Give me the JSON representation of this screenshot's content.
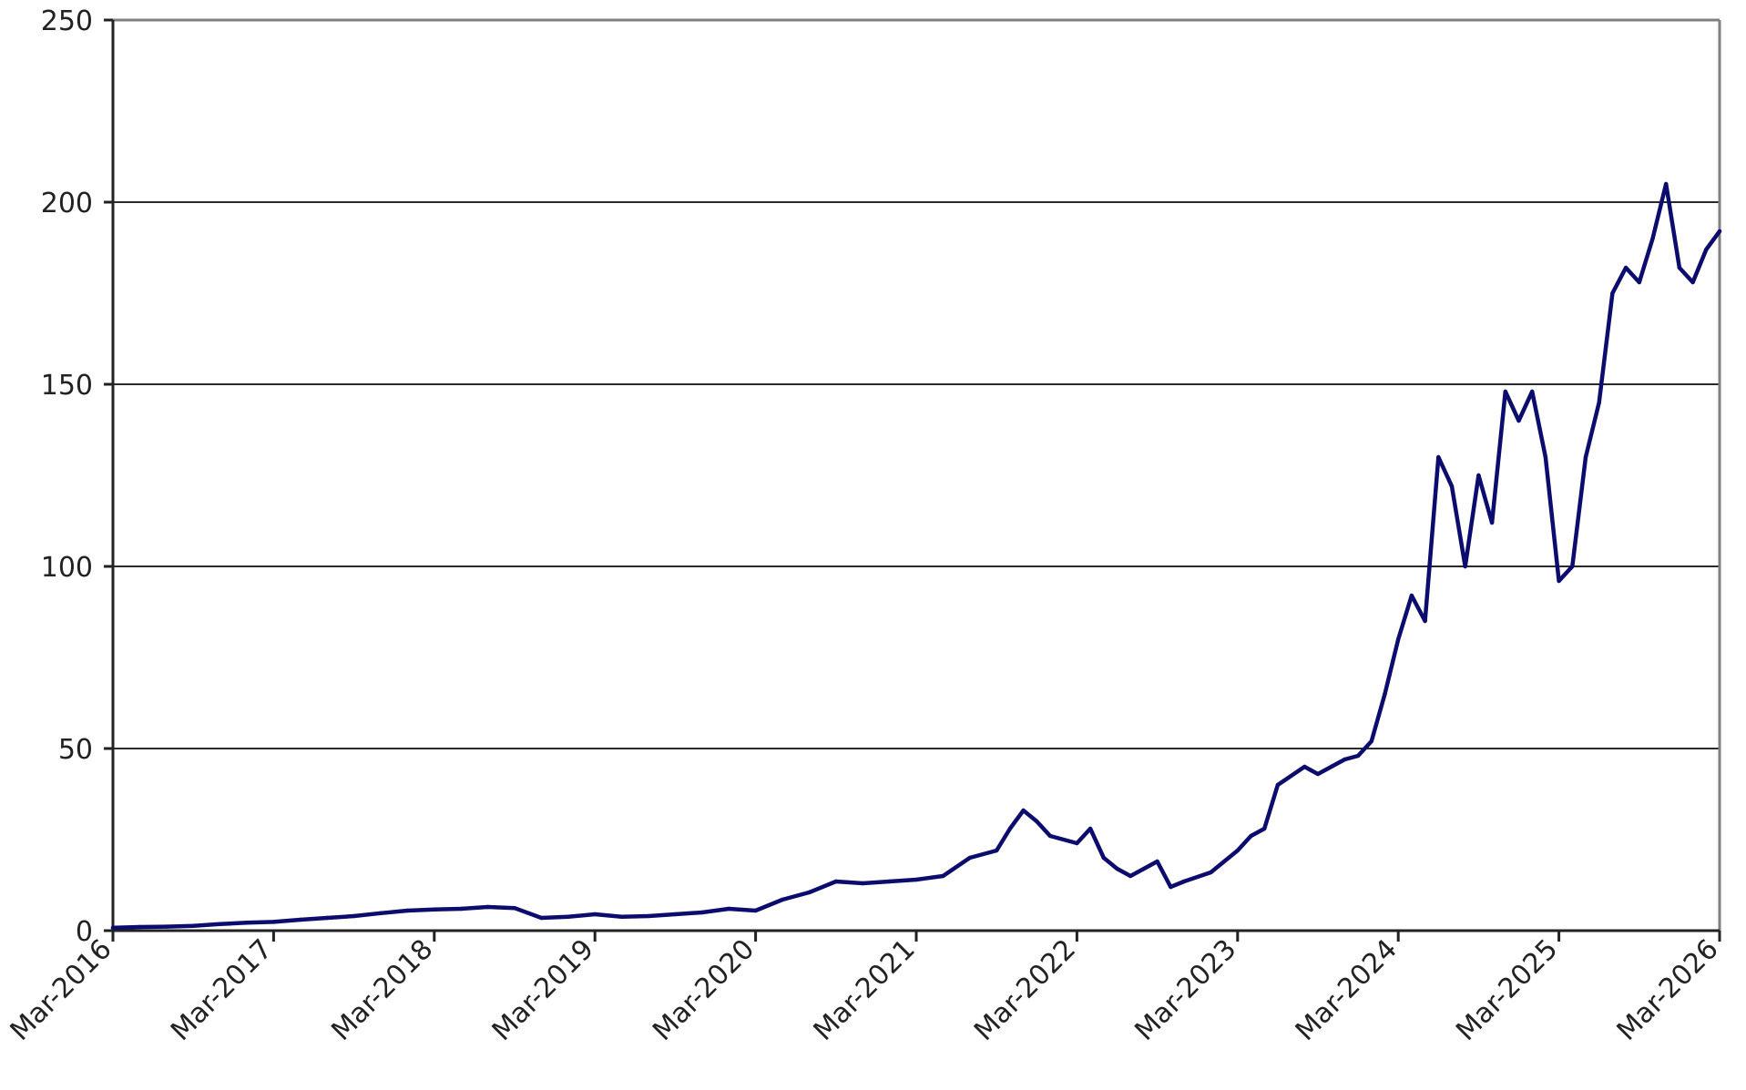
{
  "chart_data": {
    "type": "line",
    "title": "",
    "xlabel": "",
    "ylabel": "",
    "ylim": [
      0,
      250
    ],
    "y_ticks": [
      0,
      50,
      100,
      150,
      200,
      250
    ],
    "x_ticks": [
      "Mar-2016",
      "Mar-2017",
      "Mar-2018",
      "Mar-2019",
      "Mar-2020",
      "Mar-2021",
      "Mar-2022",
      "Mar-2023",
      "Mar-2024",
      "Mar-2025",
      "Mar-2026"
    ],
    "grid": true,
    "legend": "none",
    "line_color": "#0b0c6e",
    "series": [
      {
        "x": [
          "Mar-2016",
          "May-2016",
          "Jul-2016",
          "Sep-2016",
          "Nov-2016",
          "Jan-2017",
          "Mar-2017",
          "May-2017",
          "Jul-2017",
          "Sep-2017",
          "Nov-2017",
          "Jan-2018",
          "Mar-2018",
          "May-2018",
          "Jul-2018",
          "Sep-2018",
          "Nov-2018",
          "Jan-2019",
          "Mar-2019",
          "May-2019",
          "Jul-2019",
          "Sep-2019",
          "Nov-2019",
          "Jan-2020",
          "Mar-2020",
          "May-2020",
          "Jul-2020",
          "Sep-2020",
          "Nov-2020",
          "Jan-2021",
          "Mar-2021",
          "May-2021",
          "Jul-2021",
          "Sep-2021",
          "Oct-2021",
          "Nov-2021",
          "Dec-2021",
          "Jan-2022",
          "Mar-2022",
          "Apr-2022",
          "May-2022",
          "Jun-2022",
          "Jul-2022",
          "Sep-2022",
          "Oct-2022",
          "Nov-2022",
          "Jan-2023",
          "Mar-2023",
          "Apr-2023",
          "May-2023",
          "Jun-2023",
          "Aug-2023",
          "Sep-2023",
          "Nov-2023",
          "Dec-2023",
          "Jan-2024",
          "Feb-2024",
          "Mar-2024",
          "Apr-2024",
          "May-2024",
          "Jun-2024",
          "Jul-2024",
          "Aug-2024",
          "Sep-2024",
          "Oct-2024",
          "Nov-2024",
          "Dec-2024",
          "Jan-2025",
          "Feb-2025",
          "Mar-2025",
          "Apr-2025",
          "May-2025",
          "Jun-2025",
          "Jul-2025",
          "Aug-2025",
          "Sep-2025",
          "Oct-2025",
          "Nov-2025",
          "Dec-2025",
          "Jan-2026",
          "Feb-2026",
          "Mar-2026"
        ],
        "values": [
          0.8,
          1.0,
          1.1,
          1.3,
          1.8,
          2.2,
          2.4,
          3.0,
          3.5,
          4.0,
          4.8,
          5.5,
          5.8,
          6.0,
          6.5,
          6.2,
          3.5,
          3.8,
          4.5,
          3.8,
          4.0,
          4.5,
          5.0,
          6.0,
          5.5,
          8.5,
          10.5,
          13.5,
          13.0,
          13.5,
          14.0,
          15.0,
          20.0,
          22.0,
          28.0,
          33.0,
          30.0,
          26.0,
          24.0,
          28.0,
          20.0,
          17.0,
          15.0,
          19.0,
          12.0,
          13.5,
          16.0,
          22.0,
          26.0,
          28.0,
          40.0,
          45.0,
          43.0,
          47.0,
          48.0,
          52.0,
          65.0,
          80.0,
          92.0,
          85.0,
          130.0,
          122.0,
          100.0,
          125.0,
          112.0,
          148.0,
          140.0,
          148.0,
          130.0,
          96.0,
          100.0,
          130.0,
          145.0,
          175.0,
          182.0,
          178.0,
          190.0,
          205.0,
          182.0,
          178.0,
          187.0,
          192.0
        ]
      }
    ]
  }
}
